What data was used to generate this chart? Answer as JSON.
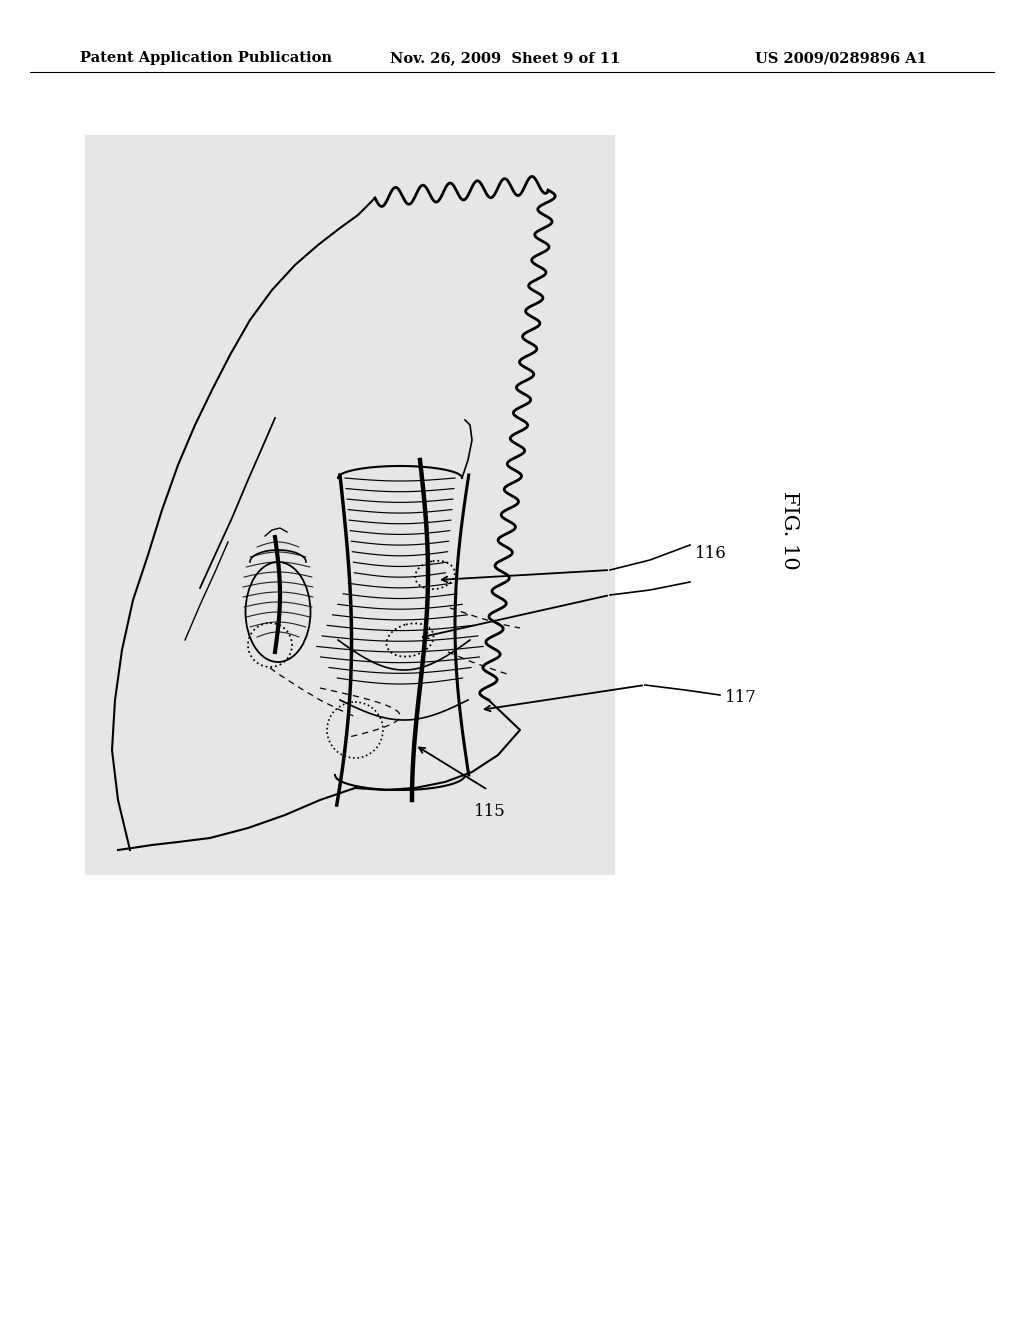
{
  "title_left": "Patent Application Publication",
  "title_mid": "Nov. 26, 2009  Sheet 9 of 11",
  "title_right": "US 2009/0289896 A1",
  "fig_label": "FIG. 10",
  "ref_115": "115",
  "ref_116": "116",
  "ref_117": "117",
  "bg_color": "#ffffff",
  "drawing_bg": "#e0e0e0",
  "line_color": "#000000",
  "header_fontsize": 10.5,
  "fig_label_fontsize": 15
}
